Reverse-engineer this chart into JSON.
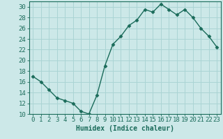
{
  "x": [
    0,
    1,
    2,
    3,
    4,
    5,
    6,
    7,
    8,
    9,
    10,
    11,
    12,
    13,
    14,
    15,
    16,
    17,
    18,
    19,
    20,
    21,
    22,
    23
  ],
  "y": [
    17,
    16,
    14.5,
    13,
    12.5,
    12,
    10.5,
    10,
    13.5,
    19,
    23,
    24.5,
    26.5,
    27.5,
    29.5,
    29,
    30.5,
    29.5,
    28.5,
    29.5,
    28,
    26,
    24.5,
    22.5
  ],
  "line_color": "#1a6b5a",
  "marker_color": "#1a6b5a",
  "bg_color": "#cce8e8",
  "grid_color": "#aad4d4",
  "xlabel": "Humidex (Indice chaleur)",
  "xlim": [
    -0.5,
    23.5
  ],
  "ylim": [
    10,
    31
  ],
  "yticks": [
    10,
    12,
    14,
    16,
    18,
    20,
    22,
    24,
    26,
    28,
    30
  ],
  "xticks": [
    0,
    1,
    2,
    3,
    4,
    5,
    6,
    7,
    8,
    9,
    10,
    11,
    12,
    13,
    14,
    15,
    16,
    17,
    18,
    19,
    20,
    21,
    22,
    23
  ],
  "axis_color": "#1a6b5a",
  "label_fontsize": 7,
  "tick_fontsize": 6.5
}
